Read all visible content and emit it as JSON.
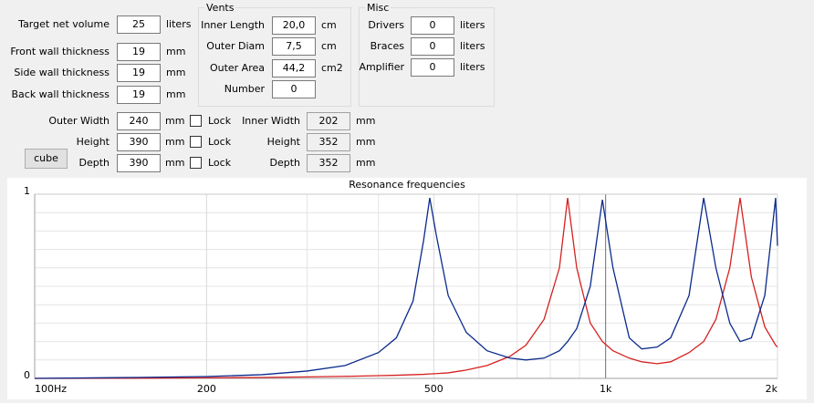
{
  "form": {
    "fields": [
      {
        "label": "Target net volume",
        "value": "25",
        "unit": "liters"
      },
      {
        "label": "Front wall thickness",
        "value": "19",
        "unit": "mm"
      },
      {
        "label": "Side wall thickness",
        "value": "19",
        "unit": "mm"
      },
      {
        "label": "Back wall thickness",
        "value": "19",
        "unit": "mm"
      }
    ],
    "vents": {
      "title": "Vents",
      "fields": [
        {
          "label": "Inner Length",
          "value": "20,0",
          "unit": "cm"
        },
        {
          "label": "Outer Diam",
          "value": "7,5",
          "unit": "cm"
        },
        {
          "label": "Outer Area",
          "value": "44,2",
          "unit": "cm2"
        },
        {
          "label": "Number",
          "value": "0"
        }
      ]
    },
    "misc": {
      "title": "Misc",
      "fields": [
        {
          "label": "Drivers",
          "value": "0",
          "unit": "liters"
        },
        {
          "label": "Braces",
          "value": "0",
          "unit": "liters"
        },
        {
          "label": "Amplifier",
          "value": "0",
          "unit": "liters"
        }
      ]
    },
    "dimensions": [
      {
        "label": "Outer Width",
        "value": "240",
        "unit": "mm",
        "lock": "Lock",
        "inner_label": "Inner Width",
        "inner_value": "202",
        "inner_unit": "mm"
      },
      {
        "label": "Height",
        "value": "390",
        "unit": "mm",
        "lock": "Lock",
        "inner_label": "Height",
        "inner_value": "352",
        "inner_unit": "mm"
      },
      {
        "label": "Depth",
        "value": "390",
        "unit": "mm",
        "lock": "Lock",
        "inner_label": "Depth",
        "inner_value": "352",
        "inner_unit": "mm"
      }
    ],
    "button": "cube"
  },
  "chart_data": {
    "type": "line",
    "title": "Resonance frequencies",
    "log_x": true,
    "grid": true,
    "xlim": [
      100,
      2000
    ],
    "xticks": [
      {
        "value": 100,
        "label": "100Hz"
      },
      200,
      500,
      {
        "value": 1000,
        "label": "1k"
      },
      {
        "value": 2000,
        "label": "2k"
      }
    ],
    "xminor": [
      300,
      400,
      600,
      700,
      800,
      900
    ],
    "ylim": [
      0,
      1
    ],
    "yticks": [
      0,
      1
    ],
    "yminor": [
      0.1,
      0.2,
      0.3,
      0.4,
      0.5,
      0.6,
      0.7,
      0.8,
      0.9
    ],
    "x": [
      100,
      150,
      200,
      250,
      300,
      350,
      400,
      430,
      460,
      480,
      492,
      505,
      530,
      570,
      620,
      680,
      725,
      780,
      830,
      858,
      890,
      940,
      987,
      1030,
      1100,
      1157,
      1231,
      1300,
      1400,
      1485,
      1560,
      1650,
      1720,
      1800,
      1900,
      1985,
      2000
    ],
    "series": [
      {
        "color": "#d62020",
        "values": [
          0,
          0.001,
          0.003,
          0.005,
          0.008,
          0.011,
          0.015,
          0.017,
          0.02,
          0.022,
          0.024,
          0.026,
          0.03,
          0.045,
          0.07,
          0.12,
          0.18,
          0.32,
          0.6,
          0.98,
          0.6,
          0.3,
          0.2,
          0.15,
          0.11,
          0.09,
          0.08,
          0.09,
          0.14,
          0.2,
          0.32,
          0.6,
          0.98,
          0.55,
          0.28,
          0.18,
          0.17
        ]
      },
      {
        "color": "#0a2a8c",
        "values": [
          0,
          0.005,
          0.01,
          0.02,
          0.04,
          0.07,
          0.14,
          0.22,
          0.42,
          0.75,
          0.98,
          0.78,
          0.45,
          0.25,
          0.15,
          0.11,
          0.1,
          0.11,
          0.15,
          0.2,
          0.27,
          0.5,
          0.97,
          0.6,
          0.22,
          0.16,
          0.17,
          0.22,
          0.45,
          0.98,
          0.6,
          0.3,
          0.2,
          0.22,
          0.45,
          0.98,
          0.72
        ]
      }
    ]
  }
}
